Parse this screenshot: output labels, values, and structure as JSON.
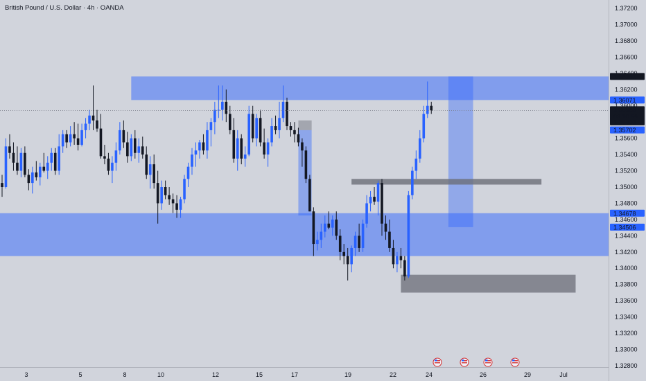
{
  "chart_data": {
    "type": "candlestick",
    "title": "British Pound / U.S. Dollar · 4h · OANDA",
    "ylim": [
      1.327,
      1.373
    ],
    "y_ticks": [
      "1.37200",
      "1.37000",
      "1.36800",
      "1.36600",
      "1.36400",
      "1.36200",
      "1.36000",
      "1.35800",
      "1.35600",
      "1.35400",
      "1.35200",
      "1.35000",
      "1.34800",
      "1.34600",
      "1.34400",
      "1.34200",
      "1.34000",
      "1.33800",
      "1.33600",
      "1.33400",
      "1.33200",
      "1.33000",
      "1.32800"
    ],
    "x_ticks": [
      "3",
      "5",
      "8",
      "10",
      "12",
      "15",
      "17",
      "19",
      "22",
      "24",
      "26",
      "29",
      "Jul"
    ],
    "price_labels": [
      {
        "value": 1.36361,
        "text": "1.36361",
        "bg": "#131722"
      },
      {
        "value": 1.36071,
        "text": "1.36071",
        "bg": "#2962ff"
      },
      {
        "value": 1.35943,
        "text": "1.35943",
        "sub": "03:10:59",
        "bg": "#131722"
      },
      {
        "value": 1.35803,
        "text": "1.35803",
        "bg": "#131722"
      },
      {
        "value": 1.35702,
        "text": "1.35702",
        "bg": "#2962ff"
      },
      {
        "value": 1.34678,
        "text": "1.34678",
        "bg": "#2962ff"
      },
      {
        "value": 1.34506,
        "text": "1.34506",
        "bg": "#2962ff"
      }
    ],
    "current_price": 1.35943,
    "colors": {
      "up": "#2962ff",
      "down": "#131722",
      "zone": "#2962ff",
      "gray_zone": "#6b6e78"
    },
    "candles": [
      {
        "o": 1.3505,
        "h": 1.3515,
        "l": 1.3488,
        "c": 1.35
      },
      {
        "o": 1.35,
        "h": 1.356,
        "l": 1.3498,
        "c": 1.355
      },
      {
        "o": 1.355,
        "h": 1.3565,
        "l": 1.3535,
        "c": 1.3542
      },
      {
        "o": 1.3542,
        "h": 1.3555,
        "l": 1.352,
        "c": 1.353
      },
      {
        "o": 1.353,
        "h": 1.355,
        "l": 1.3515,
        "c": 1.352
      },
      {
        "o": 1.352,
        "h": 1.3548,
        "l": 1.3512,
        "c": 1.3542
      },
      {
        "o": 1.3542,
        "h": 1.355,
        "l": 1.3512,
        "c": 1.3515
      },
      {
        "o": 1.3515,
        "h": 1.3522,
        "l": 1.3496,
        "c": 1.3505
      },
      {
        "o": 1.3505,
        "h": 1.3525,
        "l": 1.3492,
        "c": 1.3518
      },
      {
        "o": 1.3518,
        "h": 1.3532,
        "l": 1.3508,
        "c": 1.3512
      },
      {
        "o": 1.3512,
        "h": 1.353,
        "l": 1.3502,
        "c": 1.3525
      },
      {
        "o": 1.3525,
        "h": 1.3542,
        "l": 1.3518,
        "c": 1.352
      },
      {
        "o": 1.352,
        "h": 1.3538,
        "l": 1.351,
        "c": 1.353
      },
      {
        "o": 1.353,
        "h": 1.3548,
        "l": 1.352,
        "c": 1.3542
      },
      {
        "o": 1.3542,
        "h": 1.3548,
        "l": 1.3515,
        "c": 1.352
      },
      {
        "o": 1.352,
        "h": 1.3565,
        "l": 1.3515,
        "c": 1.355
      },
      {
        "o": 1.355,
        "h": 1.357,
        "l": 1.3542,
        "c": 1.3565
      },
      {
        "o": 1.3565,
        "h": 1.357,
        "l": 1.3548,
        "c": 1.3555
      },
      {
        "o": 1.3555,
        "h": 1.3575,
        "l": 1.355,
        "c": 1.3565
      },
      {
        "o": 1.3565,
        "h": 1.358,
        "l": 1.3552,
        "c": 1.356
      },
      {
        "o": 1.356,
        "h": 1.3578,
        "l": 1.3545,
        "c": 1.3552
      },
      {
        "o": 1.3552,
        "h": 1.3578,
        "l": 1.355,
        "c": 1.357
      },
      {
        "o": 1.357,
        "h": 1.3585,
        "l": 1.356,
        "c": 1.3578
      },
      {
        "o": 1.3578,
        "h": 1.3595,
        "l": 1.357,
        "c": 1.3588
      },
      {
        "o": 1.3588,
        "h": 1.3625,
        "l": 1.357,
        "c": 1.3582
      },
      {
        "o": 1.3582,
        "h": 1.3595,
        "l": 1.3568,
        "c": 1.3572
      },
      {
        "o": 1.3572,
        "h": 1.359,
        "l": 1.3535,
        "c": 1.3538
      },
      {
        "o": 1.3538,
        "h": 1.3552,
        "l": 1.3528,
        "c": 1.3535
      },
      {
        "o": 1.3535,
        "h": 1.3542,
        "l": 1.3515,
        "c": 1.352
      },
      {
        "o": 1.352,
        "h": 1.3538,
        "l": 1.3505,
        "c": 1.353
      },
      {
        "o": 1.353,
        "h": 1.3555,
        "l": 1.352,
        "c": 1.3545
      },
      {
        "o": 1.3545,
        "h": 1.358,
        "l": 1.354,
        "c": 1.357
      },
      {
        "o": 1.357,
        "h": 1.3582,
        "l": 1.3548,
        "c": 1.3555
      },
      {
        "o": 1.3555,
        "h": 1.3568,
        "l": 1.353,
        "c": 1.3538
      },
      {
        "o": 1.3538,
        "h": 1.3565,
        "l": 1.3532,
        "c": 1.356
      },
      {
        "o": 1.356,
        "h": 1.357,
        "l": 1.3535,
        "c": 1.3542
      },
      {
        "o": 1.3542,
        "h": 1.356,
        "l": 1.353,
        "c": 1.355
      },
      {
        "o": 1.355,
        "h": 1.3562,
        "l": 1.3535,
        "c": 1.354
      },
      {
        "o": 1.354,
        "h": 1.355,
        "l": 1.351,
        "c": 1.3515
      },
      {
        "o": 1.3515,
        "h": 1.3538,
        "l": 1.3498,
        "c": 1.3528
      },
      {
        "o": 1.3528,
        "h": 1.354,
        "l": 1.3498,
        "c": 1.3505
      },
      {
        "o": 1.3505,
        "h": 1.352,
        "l": 1.3455,
        "c": 1.348
      },
      {
        "o": 1.348,
        "h": 1.3508,
        "l": 1.3472,
        "c": 1.35
      },
      {
        "o": 1.35,
        "h": 1.3508,
        "l": 1.3485,
        "c": 1.349
      },
      {
        "o": 1.349,
        "h": 1.35,
        "l": 1.3478,
        "c": 1.3485
      },
      {
        "o": 1.3485,
        "h": 1.3492,
        "l": 1.3468,
        "c": 1.348
      },
      {
        "o": 1.348,
        "h": 1.349,
        "l": 1.3462,
        "c": 1.3472
      },
      {
        "o": 1.3472,
        "h": 1.3488,
        "l": 1.3462,
        "c": 1.3485
      },
      {
        "o": 1.3485,
        "h": 1.3515,
        "l": 1.348,
        "c": 1.351
      },
      {
        "o": 1.351,
        "h": 1.353,
        "l": 1.35,
        "c": 1.3525
      },
      {
        "o": 1.3525,
        "h": 1.3548,
        "l": 1.3515,
        "c": 1.354
      },
      {
        "o": 1.354,
        "h": 1.3555,
        "l": 1.3525,
        "c": 1.3545
      },
      {
        "o": 1.3545,
        "h": 1.3558,
        "l": 1.3535,
        "c": 1.3555
      },
      {
        "o": 1.3555,
        "h": 1.3565,
        "l": 1.354,
        "c": 1.3545
      },
      {
        "o": 1.3545,
        "h": 1.358,
        "l": 1.3535,
        "c": 1.357
      },
      {
        "o": 1.357,
        "h": 1.3585,
        "l": 1.355,
        "c": 1.358
      },
      {
        "o": 1.358,
        "h": 1.3605,
        "l": 1.3565,
        "c": 1.3595
      },
      {
        "o": 1.3595,
        "h": 1.3625,
        "l": 1.3585,
        "c": 1.3595
      },
      {
        "o": 1.3595,
        "h": 1.3625,
        "l": 1.3582,
        "c": 1.3605
      },
      {
        "o": 1.3605,
        "h": 1.362,
        "l": 1.358,
        "c": 1.359
      },
      {
        "o": 1.359,
        "h": 1.36,
        "l": 1.3565,
        "c": 1.357
      },
      {
        "o": 1.357,
        "h": 1.3585,
        "l": 1.353,
        "c": 1.3535
      },
      {
        "o": 1.3535,
        "h": 1.357,
        "l": 1.352,
        "c": 1.356
      },
      {
        "o": 1.356,
        "h": 1.3565,
        "l": 1.3528,
        "c": 1.3535
      },
      {
        "o": 1.3535,
        "h": 1.355,
        "l": 1.3525,
        "c": 1.354
      },
      {
        "o": 1.354,
        "h": 1.36,
        "l": 1.3538,
        "c": 1.359
      },
      {
        "o": 1.359,
        "h": 1.36,
        "l": 1.3555,
        "c": 1.356
      },
      {
        "o": 1.356,
        "h": 1.359,
        "l": 1.355,
        "c": 1.3585
      },
      {
        "o": 1.3585,
        "h": 1.3595,
        "l": 1.355,
        "c": 1.3555
      },
      {
        "o": 1.3555,
        "h": 1.3572,
        "l": 1.3535,
        "c": 1.354
      },
      {
        "o": 1.354,
        "h": 1.356,
        "l": 1.3525,
        "c": 1.3555
      },
      {
        "o": 1.3555,
        "h": 1.3585,
        "l": 1.355,
        "c": 1.3575
      },
      {
        "o": 1.3575,
        "h": 1.3588,
        "l": 1.3565,
        "c": 1.357
      },
      {
        "o": 1.357,
        "h": 1.3605,
        "l": 1.356,
        "c": 1.3585
      },
      {
        "o": 1.3585,
        "h": 1.3625,
        "l": 1.358,
        "c": 1.3605
      },
      {
        "o": 1.3605,
        "h": 1.361,
        "l": 1.357,
        "c": 1.3575
      },
      {
        "o": 1.3575,
        "h": 1.358,
        "l": 1.3562,
        "c": 1.357
      },
      {
        "o": 1.357,
        "h": 1.358,
        "l": 1.3555,
        "c": 1.3565
      },
      {
        "o": 1.3565,
        "h": 1.3573,
        "l": 1.355,
        "c": 1.3555
      },
      {
        "o": 1.3555,
        "h": 1.356,
        "l": 1.3525,
        "c": 1.3545
      },
      {
        "o": 1.3545,
        "h": 1.355,
        "l": 1.3505,
        "c": 1.351
      },
      {
        "o": 1.351,
        "h": 1.3515,
        "l": 1.347,
        "c": 1.347
      },
      {
        "o": 1.347,
        "h": 1.3475,
        "l": 1.3415,
        "c": 1.343
      },
      {
        "o": 1.343,
        "h": 1.3445,
        "l": 1.3422,
        "c": 1.3435
      },
      {
        "o": 1.3435,
        "h": 1.3455,
        "l": 1.3425,
        "c": 1.3445
      },
      {
        "o": 1.3445,
        "h": 1.3465,
        "l": 1.3438,
        "c": 1.3455
      },
      {
        "o": 1.3455,
        "h": 1.347,
        "l": 1.3448,
        "c": 1.345
      },
      {
        "o": 1.345,
        "h": 1.3465,
        "l": 1.344,
        "c": 1.346
      },
      {
        "o": 1.346,
        "h": 1.347,
        "l": 1.3435,
        "c": 1.344
      },
      {
        "o": 1.344,
        "h": 1.3448,
        "l": 1.341,
        "c": 1.342
      },
      {
        "o": 1.342,
        "h": 1.343,
        "l": 1.3405,
        "c": 1.3415
      },
      {
        "o": 1.3415,
        "h": 1.3425,
        "l": 1.3385,
        "c": 1.3405
      },
      {
        "o": 1.3405,
        "h": 1.3428,
        "l": 1.3395,
        "c": 1.3425
      },
      {
        "o": 1.3425,
        "h": 1.3445,
        "l": 1.3415,
        "c": 1.344
      },
      {
        "o": 1.344,
        "h": 1.3455,
        "l": 1.342,
        "c": 1.3425
      },
      {
        "o": 1.3425,
        "h": 1.346,
        "l": 1.342,
        "c": 1.3455
      },
      {
        "o": 1.3455,
        "h": 1.349,
        "l": 1.345,
        "c": 1.348
      },
      {
        "o": 1.348,
        "h": 1.3495,
        "l": 1.347,
        "c": 1.3488
      },
      {
        "o": 1.3488,
        "h": 1.35,
        "l": 1.3478,
        "c": 1.3482
      },
      {
        "o": 1.3482,
        "h": 1.3508,
        "l": 1.3465,
        "c": 1.3505
      },
      {
        "o": 1.3505,
        "h": 1.351,
        "l": 1.344,
        "c": 1.3455
      },
      {
        "o": 1.3455,
        "h": 1.3465,
        "l": 1.3435,
        "c": 1.3445
      },
      {
        "o": 1.3445,
        "h": 1.346,
        "l": 1.342,
        "c": 1.3425
      },
      {
        "o": 1.3425,
        "h": 1.3435,
        "l": 1.34,
        "c": 1.3405
      },
      {
        "o": 1.3405,
        "h": 1.342,
        "l": 1.3395,
        "c": 1.3415
      },
      {
        "o": 1.3415,
        "h": 1.3425,
        "l": 1.34,
        "c": 1.341
      },
      {
        "o": 1.341,
        "h": 1.3415,
        "l": 1.3385,
        "c": 1.339
      },
      {
        "o": 1.339,
        "h": 1.3495,
        "l": 1.3388,
        "c": 1.349
      },
      {
        "o": 1.349,
        "h": 1.3525,
        "l": 1.3485,
        "c": 1.352
      },
      {
        "o": 1.352,
        "h": 1.3545,
        "l": 1.351,
        "c": 1.3535
      },
      {
        "o": 1.3535,
        "h": 1.357,
        "l": 1.353,
        "c": 1.356
      },
      {
        "o": 1.356,
        "h": 1.36,
        "l": 1.3555,
        "c": 1.359
      },
      {
        "o": 1.359,
        "h": 1.363,
        "l": 1.3585,
        "c": 1.36
      },
      {
        "o": 1.36,
        "h": 1.3605,
        "l": 1.359,
        "c": 1.35943
      }
    ],
    "zones": [
      {
        "name": "upper-blue-zone",
        "x0_bar": 34,
        "x1_bar": 182,
        "y_top": 1.36361,
        "y_bot": 1.36071,
        "color": "#2962ff",
        "opacity": 0.48
      },
      {
        "name": "lower-blue-zone",
        "x0_bar": -2,
        "x1_bar": 182,
        "y_top": 1.34678,
        "y_bot": 1.3415,
        "color": "#2962ff",
        "opacity": 0.48
      },
      {
        "name": "projection-box",
        "x0_bar": 117.5,
        "x1_bar": 124,
        "y_top": 1.36361,
        "y_bot": 1.34506,
        "color": "#2962ff",
        "opacity": 0.38
      },
      {
        "name": "mid-gray-zone",
        "x0_bar": 92,
        "x1_bar": 142,
        "y_top": 1.351,
        "y_bot": 1.3503,
        "color": "#6b6e78",
        "opacity": 0.8
      },
      {
        "name": "low-gray-zone",
        "x0_bar": 105,
        "x1_bar": 151,
        "y_top": 1.3392,
        "y_bot": 1.337,
        "color": "#6b6e78",
        "opacity": 0.75
      },
      {
        "name": "small-gray-zone",
        "x0_bar": 78,
        "x1_bar": 81.5,
        "y_top": 1.3582,
        "y_bot": 1.357,
        "color": "#8a8d96",
        "opacity": 0.65
      },
      {
        "name": "left-blue-drop",
        "x0_bar": 78,
        "x1_bar": 81.5,
        "y_top": 1.357,
        "y_bot": 1.3465,
        "color": "#2962ff",
        "opacity": 0.4
      }
    ]
  }
}
